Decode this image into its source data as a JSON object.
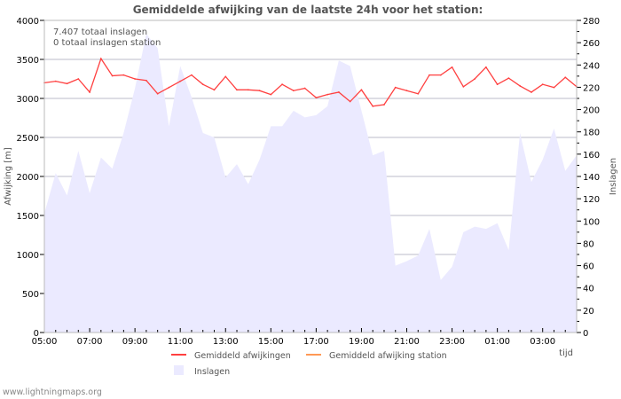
{
  "chart_data": {
    "type": "line",
    "title": "Gemiddelde afwijking van de laatste 24h voor het station:",
    "xlabel": "tijd",
    "ylabel": "Afwijking  [m]",
    "y2label": "Inslagen",
    "xlim": [
      0,
      23.5
    ],
    "ylim": [
      0,
      4000
    ],
    "y2lim": [
      0,
      280
    ],
    "x_step_hours": 0.5,
    "x_tick_labels": [
      "05:00",
      "07:00",
      "09:00",
      "11:00",
      "13:00",
      "15:00",
      "17:00",
      "19:00",
      "21:00",
      "23:00",
      "01:00",
      "03:00"
    ],
    "y_ticks": [
      0,
      500,
      1000,
      1500,
      2000,
      2500,
      3000,
      3500,
      4000
    ],
    "y2_ticks": [
      0,
      20,
      40,
      60,
      80,
      100,
      120,
      140,
      160,
      180,
      200,
      220,
      240,
      260,
      280
    ],
    "grid": true,
    "annotations": [
      "7.407 totaal inslagen",
      "0 totaal inslagen station"
    ],
    "series": [
      {
        "name": "Gemiddeld afwijkingen",
        "color": "#ff4040",
        "axis": "left",
        "values": [
          3200,
          3220,
          3190,
          3250,
          3080,
          3510,
          3290,
          3300,
          3250,
          3230,
          3060,
          3140,
          3220,
          3300,
          3180,
          3110,
          3280,
          3110,
          3110,
          3100,
          3050,
          3180,
          3100,
          3130,
          3010,
          3050,
          3080,
          2960,
          3110,
          2900,
          2920,
          3140,
          3100,
          3060,
          3300,
          3300,
          3400,
          3150,
          3250,
          3400,
          3180,
          3260,
          3160,
          3080,
          3180,
          3140,
          3270,
          3150
        ]
      },
      {
        "name": "Gemiddeld afwijking station",
        "color": "#ff9955",
        "axis": "left",
        "values": []
      },
      {
        "name": "Inslagen",
        "color": "#ebeaff",
        "axis": "right",
        "type": "area",
        "values": [
          107,
          143,
          123,
          163,
          125,
          157,
          147,
          179,
          219,
          268,
          255,
          185,
          239,
          211,
          179,
          175,
          139,
          151,
          133,
          155,
          185,
          185,
          199,
          193,
          195,
          203,
          244,
          239,
          199,
          159,
          163,
          60,
          64,
          69,
          93,
          47,
          59,
          90,
          95,
          93,
          98,
          74,
          179,
          135,
          155,
          183,
          145,
          159
        ]
      }
    ]
  },
  "footer": "www.lightningmaps.org"
}
